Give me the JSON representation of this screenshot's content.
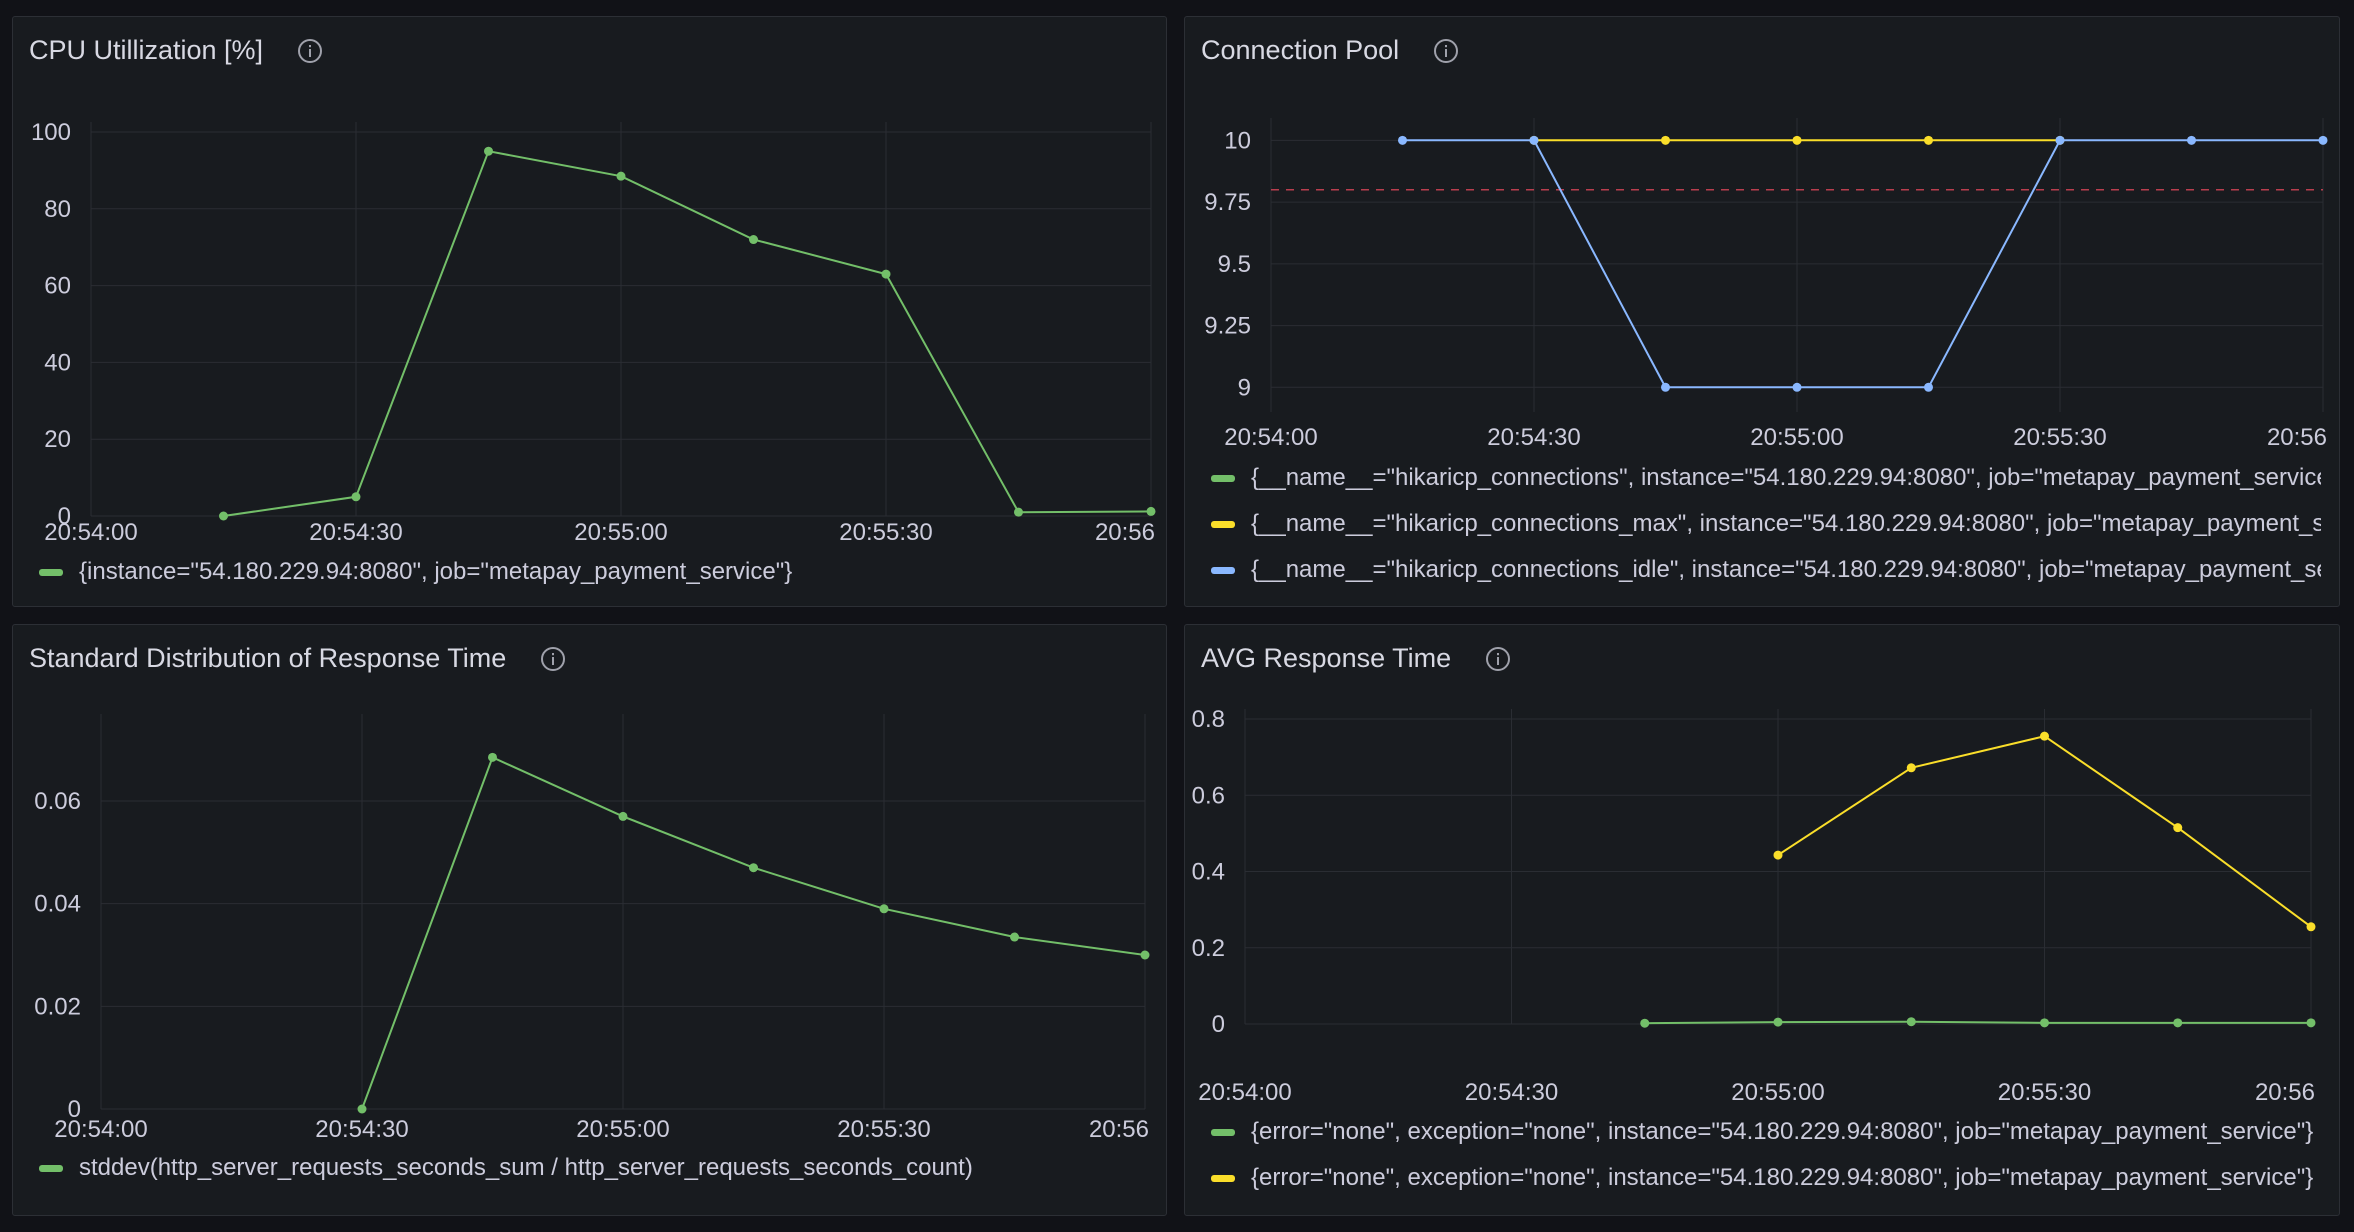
{
  "panels": [
    {
      "title": "CPU Utillization [%]",
      "legend": [
        {
          "label": "{instance=\"54.180.229.94:8080\", job=\"metapay_payment_service\"}",
          "color": "#73bf69"
        }
      ]
    },
    {
      "title": "Connection Pool",
      "legend": [
        {
          "label": "{__name__=\"hikaricp_connections\", instance=\"54.180.229.94:8080\", job=\"metapay_payment_service\"}",
          "color": "#73bf69"
        },
        {
          "label": "{__name__=\"hikaricp_connections_max\", instance=\"54.180.229.94:8080\", job=\"metapay_payment_service\"}",
          "color": "#fade2a"
        },
        {
          "label": "{__name__=\"hikaricp_connections_idle\", instance=\"54.180.229.94:8080\", job=\"metapay_payment_service\"}",
          "color": "#8ab8ff"
        }
      ]
    },
    {
      "title": "Standard Distribution of Response Time",
      "legend": [
        {
          "label": "stddev(http_server_requests_seconds_sum / http_server_requests_seconds_count)",
          "color": "#73bf69"
        }
      ]
    },
    {
      "title": "AVG Response Time",
      "legend": [
        {
          "label": "{error=\"none\", exception=\"none\", instance=\"54.180.229.94:8080\", job=\"metapay_payment_service\"}",
          "color": "#73bf69"
        },
        {
          "label": "{error=\"none\", exception=\"none\", instance=\"54.180.229.94:8080\", job=\"metapay_payment_service\"}",
          "color": "#fade2a"
        }
      ]
    }
  ],
  "chart_data": [
    {
      "type": "line",
      "title": "CPU Utillization [%]",
      "x_ticks": [
        "20:54:00",
        "20:54:30",
        "20:55:00",
        "20:55:30",
        "20:56"
      ],
      "xlim": [
        0,
        120
      ],
      "y_ticks": [
        "0",
        "20",
        "40",
        "60",
        "80",
        "100"
      ],
      "ylim": [
        0,
        100
      ],
      "grid": true,
      "series": [
        {
          "color": "#73bf69",
          "x": [
            15,
            30,
            45,
            60,
            75,
            90,
            105,
            120
          ],
          "values": [
            0,
            5,
            95,
            88.5,
            72,
            63,
            1,
            1.2
          ]
        }
      ]
    },
    {
      "type": "line",
      "title": "Connection Pool",
      "x_ticks": [
        "20:54:00",
        "20:54:30",
        "20:55:00",
        "20:55:30",
        "20:56"
      ],
      "xlim": [
        0,
        120
      ],
      "y_ticks": [
        "9",
        "9.25",
        "9.5",
        "9.75",
        "10"
      ],
      "ylim": [
        8.9,
        10.05
      ],
      "grid": true,
      "threshold": {
        "value": 9.8,
        "color": "#e0475a"
      },
      "series": [
        {
          "color": "#fade2a",
          "x": [
            30,
            45,
            60,
            75,
            90
          ],
          "values": [
            10,
            10,
            10,
            10,
            10
          ]
        },
        {
          "color": "#8ab8ff",
          "x": [
            15,
            30,
            45,
            60,
            75,
            90,
            105,
            120
          ],
          "values": [
            10,
            10,
            9,
            9,
            9,
            10,
            10,
            10
          ]
        }
      ]
    },
    {
      "type": "line",
      "title": "Standard Distribution of Response Time",
      "x_ticks": [
        "20:54:00",
        "20:54:30",
        "20:55:00",
        "20:55:30",
        "20:56"
      ],
      "xlim": [
        0,
        120
      ],
      "y_ticks": [
        "0",
        "0.02",
        "0.04",
        "0.06"
      ],
      "ylim": [
        0,
        0.075
      ],
      "grid": true,
      "series": [
        {
          "color": "#73bf69",
          "x": [
            30,
            45,
            60,
            75,
            90,
            105,
            120
          ],
          "values": [
            0,
            0.0685,
            0.057,
            0.047,
            0.039,
            0.0335,
            0.03
          ]
        }
      ]
    },
    {
      "type": "line",
      "title": "AVG Response Time",
      "x_ticks": [
        "20:54:00",
        "20:54:30",
        "20:55:00",
        "20:55:30",
        "20:56"
      ],
      "xlim": [
        0,
        120
      ],
      "y_ticks": [
        "0",
        "0.2",
        "0.4",
        "0.6",
        "0.8"
      ],
      "ylim": [
        0,
        0.8
      ],
      "grid": true,
      "series": [
        {
          "color": "#73bf69",
          "x": [
            45,
            60,
            75,
            90,
            105,
            120
          ],
          "values": [
            0.002,
            0.005,
            0.006,
            0.003,
            0.003,
            0.003
          ]
        },
        {
          "color": "#fade2a",
          "x": [
            60,
            75,
            90,
            105,
            120
          ],
          "values": [
            0.443,
            0.672,
            0.755,
            0.515,
            0.255
          ]
        }
      ]
    }
  ]
}
